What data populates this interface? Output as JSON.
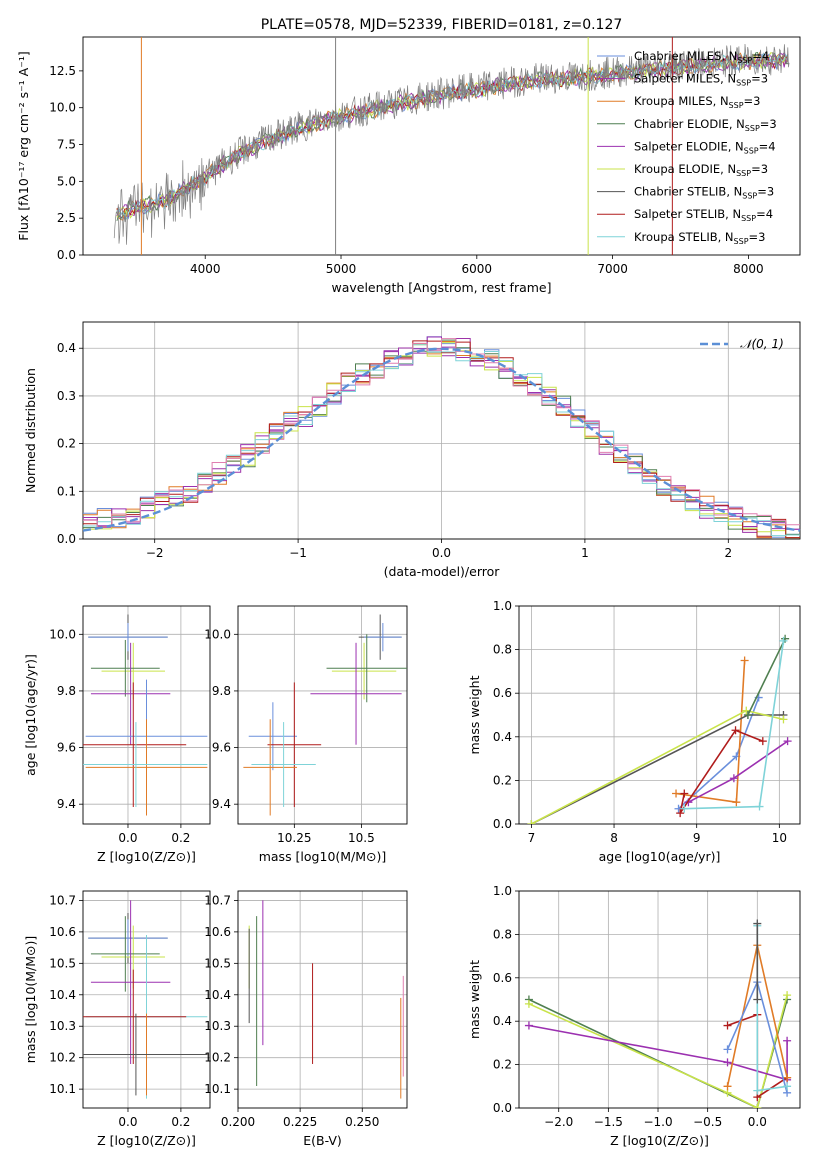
{
  "colors": [
    "#6a8fdc",
    "#9d33a8",
    "#e07b27",
    "#4f7f50",
    "#9b30b0",
    "#c9e34a",
    "#555555",
    "#b01c1c",
    "#7fd3d8"
  ],
  "chart_data": [
    {
      "id": "spectrum",
      "type": "line",
      "title": "PLATE=0578, MJD=52339, FIBERID=0181, z=0.127",
      "xlabel": "wavelength [Angstrom, rest frame]",
      "ylabel": "Flux [fλ10⁻¹⁷ erg cm⁻² s⁻¹ A⁻¹]",
      "xlim": [
        3100,
        8380
      ],
      "ylim": [
        0,
        14.8
      ],
      "xticks": [
        4000,
        5000,
        6000,
        7000,
        8000
      ],
      "yticks": [
        0.0,
        2.5,
        5.0,
        7.5,
        10.0,
        12.5
      ],
      "legend_position": "right",
      "legend": [
        "Chabrier MILES, N_SSP=4",
        "Salpeter MILES, N_SSP=3",
        "Kroupa MILES, N_SSP=3",
        "Chabrier ELODIE, N_SSP=3",
        "Salpeter ELODIE, N_SSP=4",
        "Kroupa ELODIE, N_SSP=3",
        "Chabrier STELIB, N_SSP=3",
        "Salpeter STELIB, N_SSP=4",
        "Kroupa STELIB, N_SSP=3"
      ],
      "x": [
        3330,
        3500,
        3700,
        3900,
        4100,
        4300,
        4500,
        4700,
        4900,
        5100,
        5300,
        5500,
        5700,
        5900,
        6100,
        6300,
        6500,
        6700,
        6900,
        7100,
        7300,
        7500,
        7700,
        7900,
        8100
      ],
      "data_y": [
        2.7,
        3.1,
        3.6,
        4.6,
        6.0,
        7.2,
        8.0,
        8.7,
        9.3,
        9.7,
        10.1,
        10.5,
        10.9,
        11.2,
        11.5,
        11.8,
        12.0,
        12.1,
        12.3,
        12.5,
        12.7,
        12.9,
        13.0,
        13.2,
        13.3
      ],
      "model_y": [
        2.8,
        3.2,
        3.7,
        4.7,
        6.0,
        7.1,
        7.9,
        8.6,
        9.2,
        9.6,
        10.0,
        10.4,
        10.8,
        11.1,
        11.4,
        11.7,
        11.9,
        12.0,
        12.2,
        12.4,
        12.6,
        12.8,
        12.9,
        13.1,
        13.2
      ],
      "grid": false
    },
    {
      "id": "residuals",
      "type": "line",
      "xlabel": "(data-model)/error",
      "ylabel": "Normed distribution",
      "xlim": [
        -2.5,
        2.5
      ],
      "ylim": [
        0,
        0.455
      ],
      "xticks": [
        -2,
        -1,
        0,
        1,
        2
      ],
      "yticks": [
        0.0,
        0.1,
        0.2,
        0.3,
        0.4
      ],
      "legend": [
        "𝒩(0, 1)"
      ],
      "legend_position": "top-right",
      "grid": true
    },
    {
      "id": "age-vs-Z",
      "type": "scatter",
      "xlabel": "Z [log10(Z/Z⊙)]",
      "ylabel": "age  [log10(age/yr)]",
      "xlim": [
        -0.17,
        0.31
      ],
      "ylim": [
        9.33,
        10.1
      ],
      "xticks": [
        0.0,
        0.2
      ],
      "yticks": [
        9.4,
        9.6,
        9.8,
        10.0
      ],
      "grid": true,
      "points": [
        {
          "x": 0.0,
          "y": 9.99,
          "xerr": 0.15,
          "yerr": 0.08,
          "c": 6
        },
        {
          "x": 0.0,
          "y": 9.99,
          "xerr": 0.15,
          "yerr": 0.05,
          "c": 0
        },
        {
          "x": 0.02,
          "y": 9.87,
          "xerr": 0.12,
          "yerr": 0.1,
          "c": 5
        },
        {
          "x": -0.01,
          "y": 9.88,
          "xerr": 0.13,
          "yerr": 0.1,
          "c": 3
        },
        {
          "x": 0.01,
          "y": 9.79,
          "xerr": 0.15,
          "yerr": 0.18,
          "c": 4
        },
        {
          "x": 0.07,
          "y": 9.64,
          "xerr": 0.23,
          "yerr": 0.2,
          "c": 0
        },
        {
          "x": 0.02,
          "y": 9.61,
          "xerr": 0.2,
          "yerr": 0.22,
          "c": 7
        },
        {
          "x": 0.07,
          "y": 9.53,
          "xerr": 0.23,
          "yerr": 0.17,
          "c": 2
        },
        {
          "x": 0.03,
          "y": 9.54,
          "xerr": 0.27,
          "yerr": 0.15,
          "c": 8
        }
      ]
    },
    {
      "id": "age-vs-mass",
      "type": "scatter",
      "xlabel": "mass [log10(M/M⊙)]",
      "ylabel": "",
      "xlim": [
        10.04,
        10.67
      ],
      "ylim": [
        9.33,
        10.1
      ],
      "xticks": [
        10.25,
        10.5
      ],
      "yticks": [
        9.4,
        9.6,
        9.8,
        10.0
      ],
      "grid": true,
      "points": [
        {
          "x": 10.57,
          "y": 9.99,
          "xerr": 0.08,
          "yerr": 0.08,
          "c": 6
        },
        {
          "x": 10.58,
          "y": 9.99,
          "xerr": 0.07,
          "yerr": 0.05,
          "c": 0
        },
        {
          "x": 10.51,
          "y": 9.87,
          "xerr": 0.12,
          "yerr": 0.1,
          "c": 5
        },
        {
          "x": 10.52,
          "y": 9.88,
          "xerr": 0.15,
          "yerr": 0.12,
          "c": 3
        },
        {
          "x": 10.48,
          "y": 9.79,
          "xerr": 0.17,
          "yerr": 0.18,
          "c": 4
        },
        {
          "x": 10.17,
          "y": 9.64,
          "xerr": 0.09,
          "yerr": 0.12,
          "c": 0
        },
        {
          "x": 10.25,
          "y": 9.61,
          "xerr": 0.1,
          "yerr": 0.22,
          "c": 7
        },
        {
          "x": 10.16,
          "y": 9.53,
          "xerr": 0.1,
          "yerr": 0.17,
          "c": 2
        },
        {
          "x": 10.21,
          "y": 9.54,
          "xerr": 0.12,
          "yerr": 0.15,
          "c": 8
        }
      ]
    },
    {
      "id": "weight-vs-age",
      "type": "line",
      "xlabel": "age  [log10(age/yr)]",
      "ylabel": "mass weight",
      "xlim": [
        6.85,
        10.25
      ],
      "ylim": [
        0,
        1.0
      ],
      "xticks": [
        7,
        8,
        9,
        10
      ],
      "yticks": [
        0.0,
        0.2,
        0.4,
        0.6,
        0.8,
        1.0
      ],
      "grid": true,
      "series": [
        {
          "c": 0,
          "x": [
            8.78,
            9.48,
            9.75
          ],
          "y": [
            0.07,
            0.31,
            0.58
          ]
        },
        {
          "c": 2,
          "x": [
            8.75,
            9.48,
            9.58
          ],
          "y": [
            0.14,
            0.1,
            0.75
          ]
        },
        {
          "c": 6,
          "x": [
            7.0,
            9.62,
            10.05
          ],
          "y": [
            0.0,
            0.5,
            0.5
          ]
        },
        {
          "c": 5,
          "x": [
            7.0,
            9.6,
            10.05
          ],
          "y": [
            0.0,
            0.52,
            0.48
          ]
        },
        {
          "c": 4,
          "x": [
            8.9,
            9.45,
            10.1
          ],
          "y": [
            0.1,
            0.21,
            0.38
          ]
        },
        {
          "c": 7,
          "x": [
            8.85,
            8.8,
            9.47,
            9.8
          ],
          "y": [
            0.14,
            0.05,
            0.43,
            0.38
          ]
        },
        {
          "c": 3,
          "x": [
            9.62,
            10.07
          ],
          "y": [
            0.5,
            0.85
          ]
        },
        {
          "c": 8,
          "x": [
            8.85,
            9.76,
            10.05
          ],
          "y": [
            0.07,
            0.08,
            0.84
          ]
        }
      ]
    },
    {
      "id": "mass-vs-Z",
      "type": "scatter",
      "xlabel": "Z [log10(Z/Z⊙)]",
      "ylabel": "mass [log10(M/M⊙)]",
      "xlim": [
        -0.17,
        0.31
      ],
      "ylim": [
        10.04,
        10.73
      ],
      "xticks": [
        0.0,
        0.2
      ],
      "yticks": [
        10.1,
        10.2,
        10.3,
        10.4,
        10.5,
        10.6,
        10.7
      ],
      "grid": true,
      "points": [
        {
          "x": 0.0,
          "y": 10.58,
          "xerr": 0.15,
          "yerr": 0.08,
          "c": 6
        },
        {
          "x": 0.0,
          "y": 10.58,
          "xerr": 0.15,
          "yerr": 0.06,
          "c": 0
        },
        {
          "x": 0.02,
          "y": 10.52,
          "xerr": 0.12,
          "yerr": 0.1,
          "c": 5
        },
        {
          "x": -0.01,
          "y": 10.53,
          "xerr": 0.13,
          "yerr": 0.12,
          "c": 3
        },
        {
          "x": 0.01,
          "y": 10.44,
          "xerr": 0.15,
          "yerr": 0.26,
          "c": 4
        },
        {
          "x": 0.07,
          "y": 10.33,
          "xerr": 0.23,
          "yerr": 0.26,
          "c": 8
        },
        {
          "x": 0.02,
          "y": 10.33,
          "xerr": 0.2,
          "yerr": 0.15,
          "c": 7
        },
        {
          "x": 0.07,
          "y": 10.21,
          "xerr": 0.23,
          "yerr": 0.13,
          "c": 2
        },
        {
          "x": 0.03,
          "y": 10.21,
          "xerr": 0.27,
          "yerr": 0.13,
          "c": 6
        }
      ]
    },
    {
      "id": "mass-vs-ebv",
      "type": "scatter",
      "xlabel": "E(B-V)",
      "ylabel": "",
      "xlim": [
        0.2,
        0.268
      ],
      "ylim": [
        10.04,
        10.73
      ],
      "xticks": [
        0.2,
        0.225,
        0.25
      ],
      "yticks": [
        10.1,
        10.2,
        10.3,
        10.4,
        10.5,
        10.6,
        10.7
      ],
      "grid": true,
      "points": [
        {
          "x": 0.2045,
          "y": 10.52,
          "yerr": 0.1,
          "c": 5
        },
        {
          "x": 0.2045,
          "y": 10.46,
          "yerr": 0.15,
          "c": 6
        },
        {
          "x": 0.2075,
          "y": 10.38,
          "yerr": 0.27,
          "c": 3
        },
        {
          "x": 0.21,
          "y": 10.47,
          "yerr": 0.23,
          "c": 4
        },
        {
          "x": 0.23,
          "y": 10.34,
          "yerr": 0.16,
          "c": 7
        },
        {
          "x": 0.2655,
          "y": 10.23,
          "yerr": 0.16,
          "c": 2
        },
        {
          "x": 0.2665,
          "y": 10.3,
          "yerr": 0.16,
          "c": 9
        }
      ]
    },
    {
      "id": "weight-vs-Z",
      "type": "line",
      "xlabel": "Z [log10(Z/Z⊙)]",
      "ylabel": "mass weight",
      "xlim": [
        -2.4,
        0.43
      ],
      "ylim": [
        0,
        1.0
      ],
      "xticks": [
        -2.0,
        -1.5,
        -1.0,
        -0.5,
        0.0
      ],
      "yticks": [
        0.0,
        0.2,
        0.4,
        0.6,
        0.8,
        1.0
      ],
      "grid": true,
      "series": [
        {
          "c": 3,
          "x": [
            -2.3,
            0.0,
            0.3
          ],
          "y": [
            0.5,
            0.0,
            0.5
          ]
        },
        {
          "c": 5,
          "x": [
            -2.3,
            -0.3,
            0.0,
            0.3
          ],
          "y": [
            0.48,
            0.07,
            0.0,
            0.52
          ]
        },
        {
          "c": 4,
          "x": [
            -2.3,
            -0.3,
            0.3,
            0.3
          ],
          "y": [
            0.38,
            0.21,
            0.13,
            0.31
          ]
        },
        {
          "c": 7,
          "x": [
            -0.3,
            0.0,
            0.0,
            0.3
          ],
          "y": [
            0.38,
            0.43,
            0.05,
            0.14
          ]
        },
        {
          "c": 2,
          "x": [
            -0.3,
            0.0,
            0.3
          ],
          "y": [
            0.1,
            0.75,
            0.14
          ]
        },
        {
          "c": 0,
          "x": [
            -0.3,
            0.0,
            0.3
          ],
          "y": [
            0.27,
            0.58,
            0.07
          ]
        },
        {
          "c": 8,
          "x": [
            0.0,
            0.0,
            0.3
          ],
          "y": [
            0.84,
            0.08,
            0.1
          ]
        },
        {
          "c": 6,
          "x": [
            0.0,
            0.0
          ],
          "y": [
            0.85,
            0.5
          ]
        }
      ]
    }
  ]
}
